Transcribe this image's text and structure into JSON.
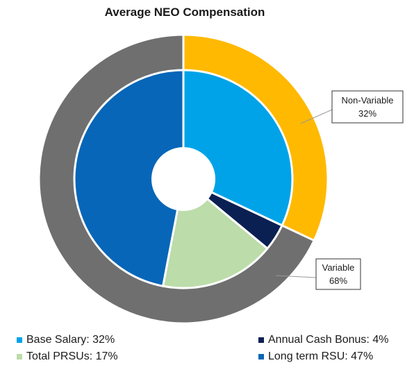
{
  "chart_data": {
    "type": "pie",
    "title": "Average NEO Compensation",
    "inner_ring": {
      "slices": [
        {
          "label": "Base Salary",
          "value": 32,
          "color": "#00A3E8"
        },
        {
          "label": "Annual Cash Bonus",
          "value": 4,
          "color": "#0B2052"
        },
        {
          "label": "Total PRSUs",
          "value": 17,
          "color": "#BCDCAA"
        },
        {
          "label": "Long term RSU",
          "value": 47,
          "color": "#0766B8"
        }
      ]
    },
    "outer_ring": {
      "slices": [
        {
          "label": "Non-Variable",
          "value": 32,
          "color": "#FFB900"
        },
        {
          "label": "Variable",
          "value": 68,
          "color": "#6F6F6F"
        }
      ]
    },
    "callouts": [
      {
        "line1": "Non-Variable",
        "line2": "32%"
      },
      {
        "line1": "Variable",
        "line2": "68%"
      }
    ],
    "legend": [
      {
        "text": "Base Salary: 32%",
        "color": "#00A3E8"
      },
      {
        "text": "Annual Cash Bonus: 4%",
        "color": "#0B2052"
      },
      {
        "text": "Total PRSUs: 17%",
        "color": "#BCDCAA"
      },
      {
        "text": "Long term RSU: 47%",
        "color": "#0766B8"
      }
    ]
  }
}
